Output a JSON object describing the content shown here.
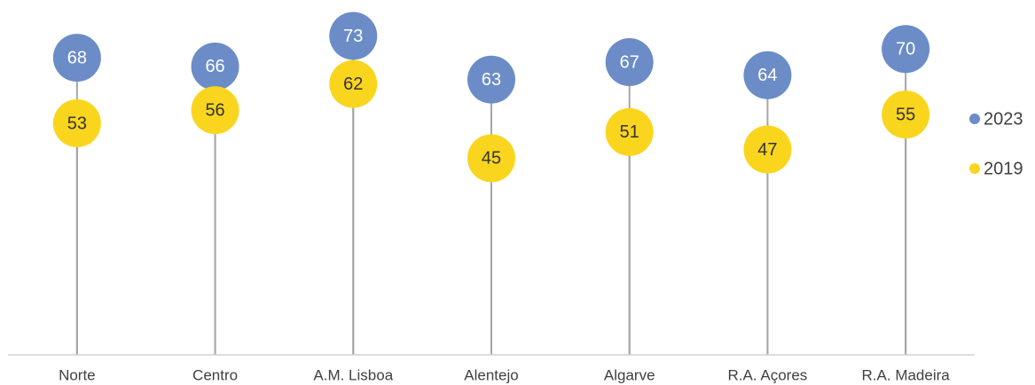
{
  "chart_data": {
    "type": "lollipop",
    "categories": [
      "Norte",
      "Centro",
      "A.M. Lisboa",
      "Alentejo",
      "Algarve",
      "R.A. Açores",
      "R.A. Madeira"
    ],
    "series": [
      {
        "name": "2023",
        "color": "#6b8cc7",
        "values": [
          68,
          66,
          73,
          63,
          67,
          64,
          70
        ]
      },
      {
        "name": "2019",
        "color": "#fad51e",
        "values": [
          53,
          56,
          62,
          45,
          51,
          47,
          55
        ]
      }
    ],
    "ylim": [
      0,
      80
    ],
    "legend": "right"
  }
}
